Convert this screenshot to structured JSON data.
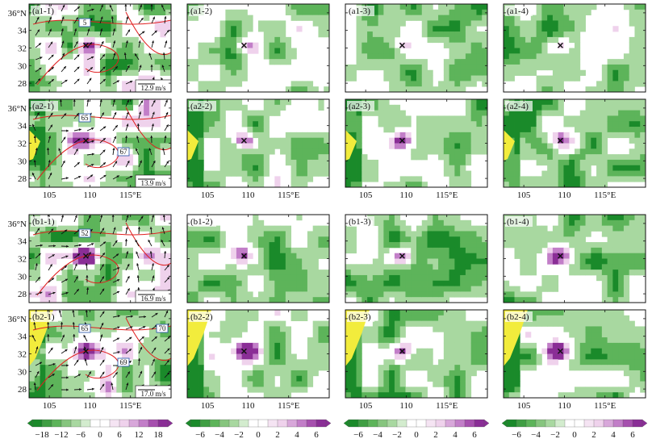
{
  "chart_data": {
    "type": "heatmap",
    "description_panels": "4x4 grid of map panels; column 1 shows a field with wind vectors and red contours; columns 2-4 show difference fields",
    "x_ticks": [
      "105",
      "110",
      "115°E"
    ],
    "y_ticks": [
      "36°N",
      "34",
      "32",
      "30",
      "28"
    ],
    "panels": [
      {
        "label": "(a1-1)",
        "row": 0,
        "col": 0,
        "vector_scale": "12.9 m/s",
        "contour_labels": [
          "5"
        ],
        "has_vectors": true
      },
      {
        "label": "(a1-2)",
        "row": 0,
        "col": 1
      },
      {
        "label": "(a1-3)",
        "row": 0,
        "col": 2
      },
      {
        "label": "(a1-4)",
        "row": 0,
        "col": 3
      },
      {
        "label": "(a2-1)",
        "row": 1,
        "col": 0,
        "vector_scale": "13.9 m/s",
        "contour_labels": [
          "65",
          "67"
        ],
        "has_vectors": true
      },
      {
        "label": "(a2-2)",
        "row": 1,
        "col": 1
      },
      {
        "label": "(a2-3)",
        "row": 1,
        "col": 2
      },
      {
        "label": "(a2-4)",
        "row": 1,
        "col": 3
      },
      {
        "label": "(b1-1)",
        "row": 2,
        "col": 0,
        "vector_scale": "16.9 m/s",
        "contour_labels": [
          "52"
        ],
        "has_vectors": true
      },
      {
        "label": "(b1-2)",
        "row": 2,
        "col": 1
      },
      {
        "label": "(b1-3)",
        "row": 2,
        "col": 2
      },
      {
        "label": "(b1-4)",
        "row": 2,
        "col": 3
      },
      {
        "label": "(b2-1)",
        "row": 3,
        "col": 0,
        "vector_scale": "17.0 m/s",
        "contour_labels": [
          "65",
          "69",
          "70"
        ],
        "has_vectors": true
      },
      {
        "label": "(b2-2)",
        "row": 3,
        "col": 1
      },
      {
        "label": "(b2-3)",
        "row": 3,
        "col": 2
      },
      {
        "label": "(b2-4)",
        "row": 3,
        "col": 3
      }
    ],
    "colorbars": [
      {
        "col": 0,
        "ticks": [
          "−18",
          "−12",
          "−6",
          "0",
          "6",
          "12",
          "18"
        ]
      },
      {
        "col": 1,
        "ticks": [
          "−6",
          "−4",
          "−2",
          "0",
          "2",
          "4",
          "6"
        ]
      },
      {
        "col": 2,
        "ticks": [
          "−6",
          "−4",
          "−2",
          "0",
          "2",
          "4",
          "6"
        ]
      },
      {
        "col": 3,
        "ticks": [
          "−6",
          "−4",
          "−2",
          "0",
          "2",
          "4",
          "6"
        ]
      }
    ],
    "colors": {
      "neg_dark": "#1a8a2a",
      "neg_mid": "#5db45a",
      "neg_light": "#a8d8a0",
      "near_zero": "#ffffff",
      "pos_light": "#efd2ec",
      "pos_mid": "#c27ec8",
      "pos_dark": "#8a2e96",
      "terrain": "#f2ec3c",
      "contour": "#e02020",
      "vector": "#111111",
      "marker": "#111111"
    }
  }
}
